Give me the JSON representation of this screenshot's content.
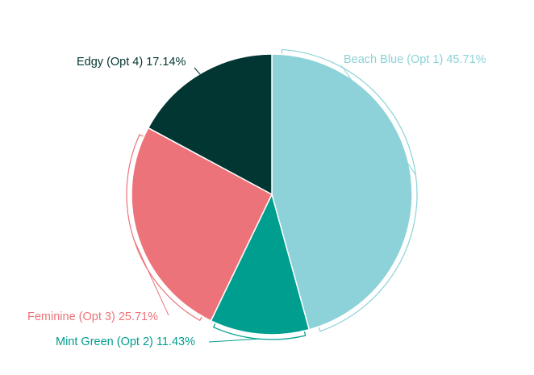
{
  "chart_data": {
    "type": "pie",
    "title": "",
    "slices": [
      {
        "label": "Beach Blue (Opt 1)",
        "percent_text": "45.71%",
        "value": 45.71,
        "color": "#8CD2D8"
      },
      {
        "label": "Mint Green (Opt 2)",
        "percent_text": "11.43%",
        "value": 11.43,
        "color": "#009E8E"
      },
      {
        "label": "Feminine (Opt 3)",
        "percent_text": "25.71%",
        "value": 25.71,
        "color": "#ED737A"
      },
      {
        "label": "Edgy (Opt 4)",
        "percent_text": "17.14%",
        "value": 17.14,
        "color": "#023632"
      }
    ]
  }
}
